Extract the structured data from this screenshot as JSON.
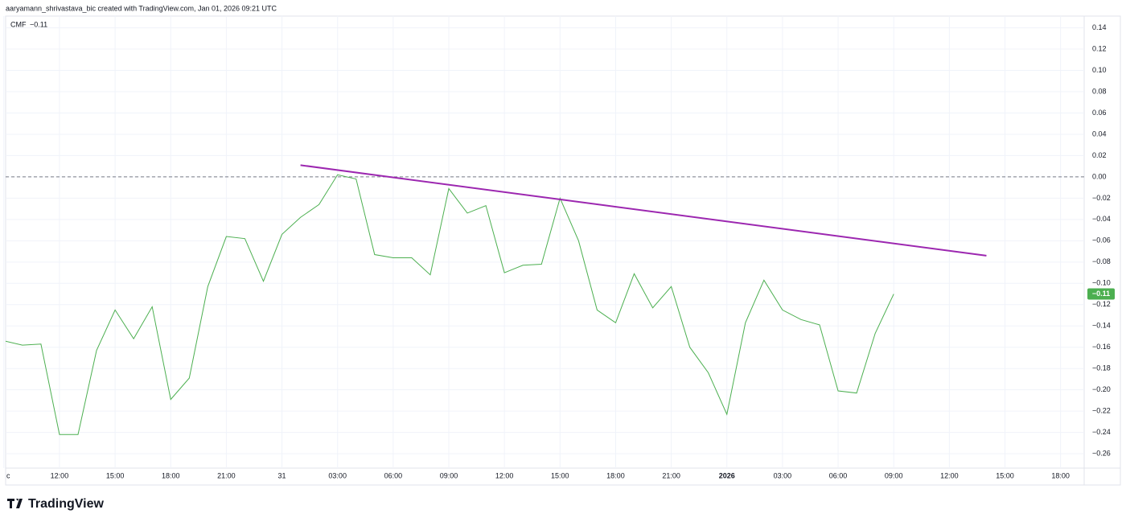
{
  "header": "aaryamann_shrivastava_bic created with TradingView.com, Jan 01, 2026 09:21 UTC",
  "footer_brand": "TradingView",
  "chart_data": {
    "type": "line",
    "legend": "top-left",
    "grid": true,
    "hline": {
      "value": 0,
      "color": "#787b86",
      "style": "dashed"
    },
    "categories": [
      "c",
      null,
      null,
      "12:00",
      null,
      null,
      "15:00",
      null,
      null,
      "18:00",
      null,
      null,
      "21:00",
      null,
      null,
      "31",
      null,
      null,
      "03:00",
      null,
      null,
      "06:00",
      null,
      null,
      "09:00",
      null,
      null,
      "12:00",
      null,
      null,
      "15:00",
      null,
      null,
      "18:00",
      null,
      null,
      "21:00",
      null,
      null,
      "2026",
      null,
      null,
      "03:00",
      null,
      null,
      "06:00",
      null,
      null,
      "09:00",
      null,
      null,
      "12:00",
      null,
      null,
      "15:00",
      null,
      null,
      "18:00"
    ],
    "series": [
      {
        "name": "CMF",
        "color": "#4caf50",
        "values": [
          -0.154,
          -0.158,
          -0.157,
          -0.242,
          -0.242,
          -0.163,
          -0.125,
          -0.152,
          -0.122,
          -0.209,
          -0.189,
          -0.103,
          -0.056,
          -0.058,
          -0.098,
          -0.054,
          -0.038,
          -0.026,
          0.002,
          -0.002,
          -0.073,
          -0.076,
          -0.076,
          -0.092,
          -0.011,
          -0.034,
          -0.027,
          -0.09,
          -0.083,
          -0.082,
          -0.02,
          -0.06,
          -0.125,
          -0.137,
          -0.091,
          -0.123,
          -0.103,
          -0.16,
          -0.184,
          -0.223,
          -0.137,
          -0.097,
          -0.125,
          -0.134,
          -0.139,
          -0.201,
          -0.203,
          -0.147,
          -0.11,
          null,
          null,
          null,
          null,
          null,
          null,
          null,
          null,
          null
        ],
        "value_labels": [
          null,
          null,
          null,
          null,
          null,
          null,
          null,
          null,
          null,
          null,
          null,
          null,
          null,
          null,
          null,
          null,
          null,
          null,
          null,
          null,
          null,
          null,
          null,
          null,
          null,
          null,
          null,
          null,
          null,
          null,
          null,
          null,
          null,
          null,
          null,
          null,
          null,
          null,
          null,
          null,
          null,
          null,
          null,
          null,
          null,
          null,
          null,
          null,
          "−0.11",
          null,
          null,
          null,
          null,
          null,
          null,
          null,
          null,
          null
        ]
      }
    ],
    "trendline": {
      "color": "#9c27b0",
      "values": [
        null,
        null,
        null,
        null,
        null,
        null,
        null,
        null,
        null,
        null,
        null,
        null,
        null,
        null,
        null,
        null,
        0.011,
        null,
        null,
        null,
        null,
        null,
        null,
        null,
        null,
        null,
        null,
        null,
        null,
        null,
        null,
        null,
        null,
        null,
        null,
        null,
        null,
        null,
        null,
        null,
        null,
        null,
        null,
        null,
        null,
        null,
        null,
        null,
        null,
        null,
        null,
        null,
        null,
        -0.074,
        null,
        null,
        null,
        null
      ]
    },
    "ylim": [
      -0.272,
      0.151
    ],
    "yticks": [
      {
        "value": 0.14,
        "label": "0.14"
      },
      {
        "value": 0.12,
        "label": "0.12"
      },
      {
        "value": 0.1,
        "label": "0.10"
      },
      {
        "value": 0.08,
        "label": "0.08"
      },
      {
        "value": 0.06,
        "label": "0.06"
      },
      {
        "value": 0.04,
        "label": "0.04"
      },
      {
        "value": 0.02,
        "label": "0.02"
      },
      {
        "value": 0,
        "label": "0.00"
      },
      {
        "value": -0.02,
        "label": "−0.02"
      },
      {
        "value": -0.04,
        "label": "−0.04"
      },
      {
        "value": -0.06,
        "label": "−0.06"
      },
      {
        "value": -0.08,
        "label": "−0.08"
      },
      {
        "value": -0.1,
        "label": "−0.10"
      },
      {
        "value": -0.12,
        "label": "−0.12"
      },
      {
        "value": -0.14,
        "label": "−0.14"
      },
      {
        "value": -0.16,
        "label": "−0.16"
      },
      {
        "value": -0.18,
        "label": "−0.18"
      },
      {
        "value": -0.2,
        "label": "−0.20"
      },
      {
        "value": -0.22,
        "label": "−0.22"
      },
      {
        "value": -0.24,
        "label": "−0.24"
      },
      {
        "value": -0.26,
        "label": "−0.26"
      }
    ]
  }
}
